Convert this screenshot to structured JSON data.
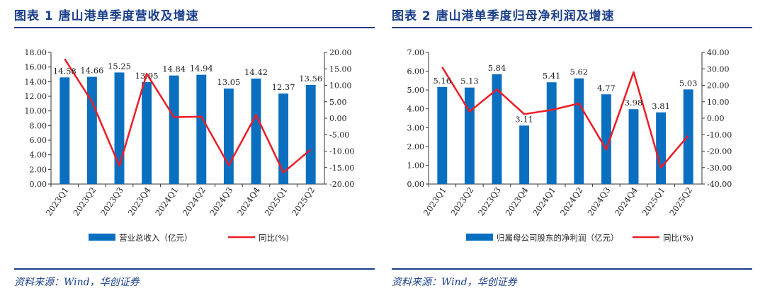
{
  "figures": [
    {
      "title": "图表 1   唐山港单季度营收及增速",
      "source": "资料来源：Wind，华创证券"
    },
    {
      "title": "图表 2   唐山港单季度归母净利润及增速",
      "source": "资料来源：Wind，华创证券"
    }
  ],
  "chart_data": [
    {
      "type": "bar",
      "categories": [
        "2023Q1",
        "2023Q2",
        "2023Q3",
        "2023Q4",
        "2024Q1",
        "2024Q2",
        "2024Q3",
        "2024Q4",
        "2025Q1",
        "2025Q2"
      ],
      "series": [
        {
          "name": "营业总收入（亿元）",
          "type": "bar",
          "axis": "left",
          "values": [
            14.58,
            14.66,
            15.25,
            13.95,
            14.84,
            14.94,
            13.05,
            14.42,
            12.37,
            13.56
          ]
        },
        {
          "name": "同比(%)",
          "type": "line",
          "axis": "right",
          "values": [
            18.0,
            5.0,
            -14.5,
            13.5,
            0.3,
            0.5,
            -14.3,
            1.0,
            -16.5,
            -9.5
          ]
        }
      ],
      "left_axis": {
        "min": 0,
        "max": 18,
        "step": 2,
        "tick_labels": [
          "0.00",
          "2.00",
          "4.00",
          "6.00",
          "8.00",
          "10.00",
          "12.00",
          "14.00",
          "16.00",
          "18.00"
        ]
      },
      "right_axis": {
        "min": -20,
        "max": 20,
        "step": 5,
        "tick_labels": [
          "-20.00",
          "-15.00",
          "-10.00",
          "-5.00",
          "0.00",
          "5.00",
          "10.00",
          "15.00",
          "20.00"
        ]
      },
      "data_labels": [
        "14.58",
        "14.66",
        "15.25",
        "13.95",
        "14.84",
        "14.94",
        "13.05",
        "14.42",
        "12.37",
        "13.56"
      ],
      "legend_position": "bottom",
      "colors": {
        "bar": "#0b6fc0",
        "line": "#ee1c25"
      }
    },
    {
      "type": "bar",
      "categories": [
        "2023Q1",
        "2023Q2",
        "2023Q3",
        "2023Q4",
        "2024Q1",
        "2024Q2",
        "2024Q3",
        "2024Q4",
        "2025Q1",
        "2025Q2"
      ],
      "series": [
        {
          "name": "归属母公司股东的净利润（亿元）",
          "type": "bar",
          "axis": "left",
          "values": [
            5.16,
            5.13,
            5.84,
            3.11,
            5.41,
            5.62,
            4.77,
            3.98,
            3.81,
            5.03
          ]
        },
        {
          "name": "同比(%)",
          "type": "line",
          "axis": "right",
          "values": [
            31.0,
            4.0,
            17.5,
            2.5,
            5.0,
            9.0,
            -19.0,
            28.0,
            -30.0,
            -10.5
          ]
        }
      ],
      "left_axis": {
        "min": 0,
        "max": 7,
        "step": 1,
        "tick_labels": [
          "0.00",
          "1.00",
          "2.00",
          "3.00",
          "4.00",
          "5.00",
          "6.00",
          "7.00"
        ]
      },
      "right_axis": {
        "min": -40,
        "max": 40,
        "step": 10,
        "tick_labels": [
          "-40.00",
          "-30.00",
          "-20.00",
          "-10.00",
          "0.00",
          "10.00",
          "20.00",
          "30.00",
          "40.00"
        ]
      },
      "data_labels": [
        "5.16",
        "5.13",
        "5.84",
        "3.11",
        "5.41",
        "5.62",
        "4.77",
        "3.98",
        "3.81",
        "5.03"
      ],
      "legend_position": "bottom",
      "colors": {
        "bar": "#0b6fc0",
        "line": "#ee1c25"
      }
    }
  ]
}
